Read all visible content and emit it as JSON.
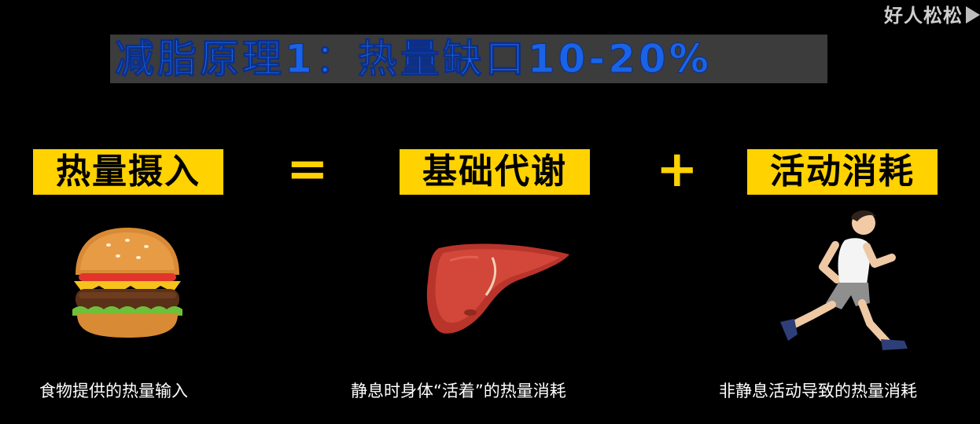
{
  "watermark": "好人松松",
  "title": "减脂原理1：热量缺口10-20%",
  "equation": {
    "term1": "热量摄入",
    "op1": "=",
    "term2": "基础代谢",
    "op2": "+",
    "term3": "活动消耗"
  },
  "captions": {
    "intake": "食物提供的热量输入",
    "bmr": "静息时身体“活着”的热量消耗",
    "activity": "非静息活动导致的热量消耗"
  },
  "colors": {
    "highlight": "#ffd200",
    "title": "#1a63e6",
    "background": "#000000"
  },
  "icons": [
    "hamburger-icon",
    "liver-icon",
    "runner-icon"
  ]
}
